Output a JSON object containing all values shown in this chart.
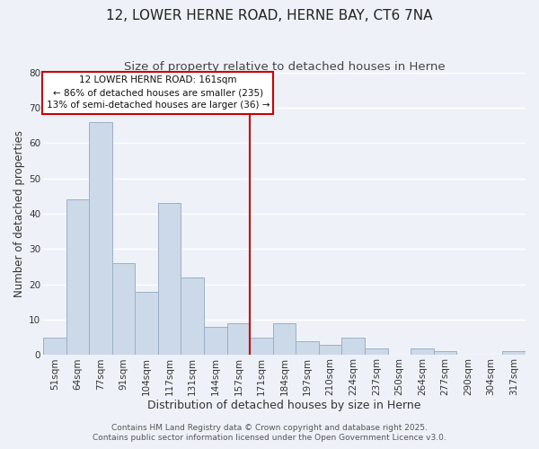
{
  "title": "12, LOWER HERNE ROAD, HERNE BAY, CT6 7NA",
  "subtitle": "Size of property relative to detached houses in Herne",
  "xlabel": "Distribution of detached houses by size in Herne",
  "ylabel": "Number of detached properties",
  "bar_labels": [
    "51sqm",
    "64sqm",
    "77sqm",
    "91sqm",
    "104sqm",
    "117sqm",
    "131sqm",
    "144sqm",
    "157sqm",
    "171sqm",
    "184sqm",
    "197sqm",
    "210sqm",
    "224sqm",
    "237sqm",
    "250sqm",
    "264sqm",
    "277sqm",
    "290sqm",
    "304sqm",
    "317sqm"
  ],
  "bar_values": [
    5,
    44,
    66,
    26,
    18,
    43,
    22,
    8,
    9,
    5,
    9,
    4,
    3,
    5,
    2,
    0,
    2,
    1,
    0,
    0,
    1
  ],
  "bar_color": "#ccd9e8",
  "bar_edgecolor": "#9ab0c8",
  "vline_x": 8.5,
  "vline_color": "#cc0000",
  "annotation_title": "12 LOWER HERNE ROAD: 161sqm",
  "annotation_line1": "← 86% of detached houses are smaller (235)",
  "annotation_line2": "13% of semi-detached houses are larger (36) →",
  "annotation_box_facecolor": "#ffffff",
  "annotation_box_edgecolor": "#cc0000",
  "ylim": [
    0,
    80
  ],
  "yticks": [
    0,
    10,
    20,
    30,
    40,
    50,
    60,
    70,
    80
  ],
  "background_color": "#eef2f8",
  "grid_color": "#ffffff",
  "footer1": "Contains HM Land Registry data © Crown copyright and database right 2025.",
  "footer2": "Contains public sector information licensed under the Open Government Licence v3.0.",
  "title_fontsize": 11,
  "subtitle_fontsize": 9.5,
  "xlabel_fontsize": 9,
  "ylabel_fontsize": 8.5,
  "tick_fontsize": 7.5,
  "annotation_fontsize": 7.5,
  "footer_fontsize": 6.5
}
